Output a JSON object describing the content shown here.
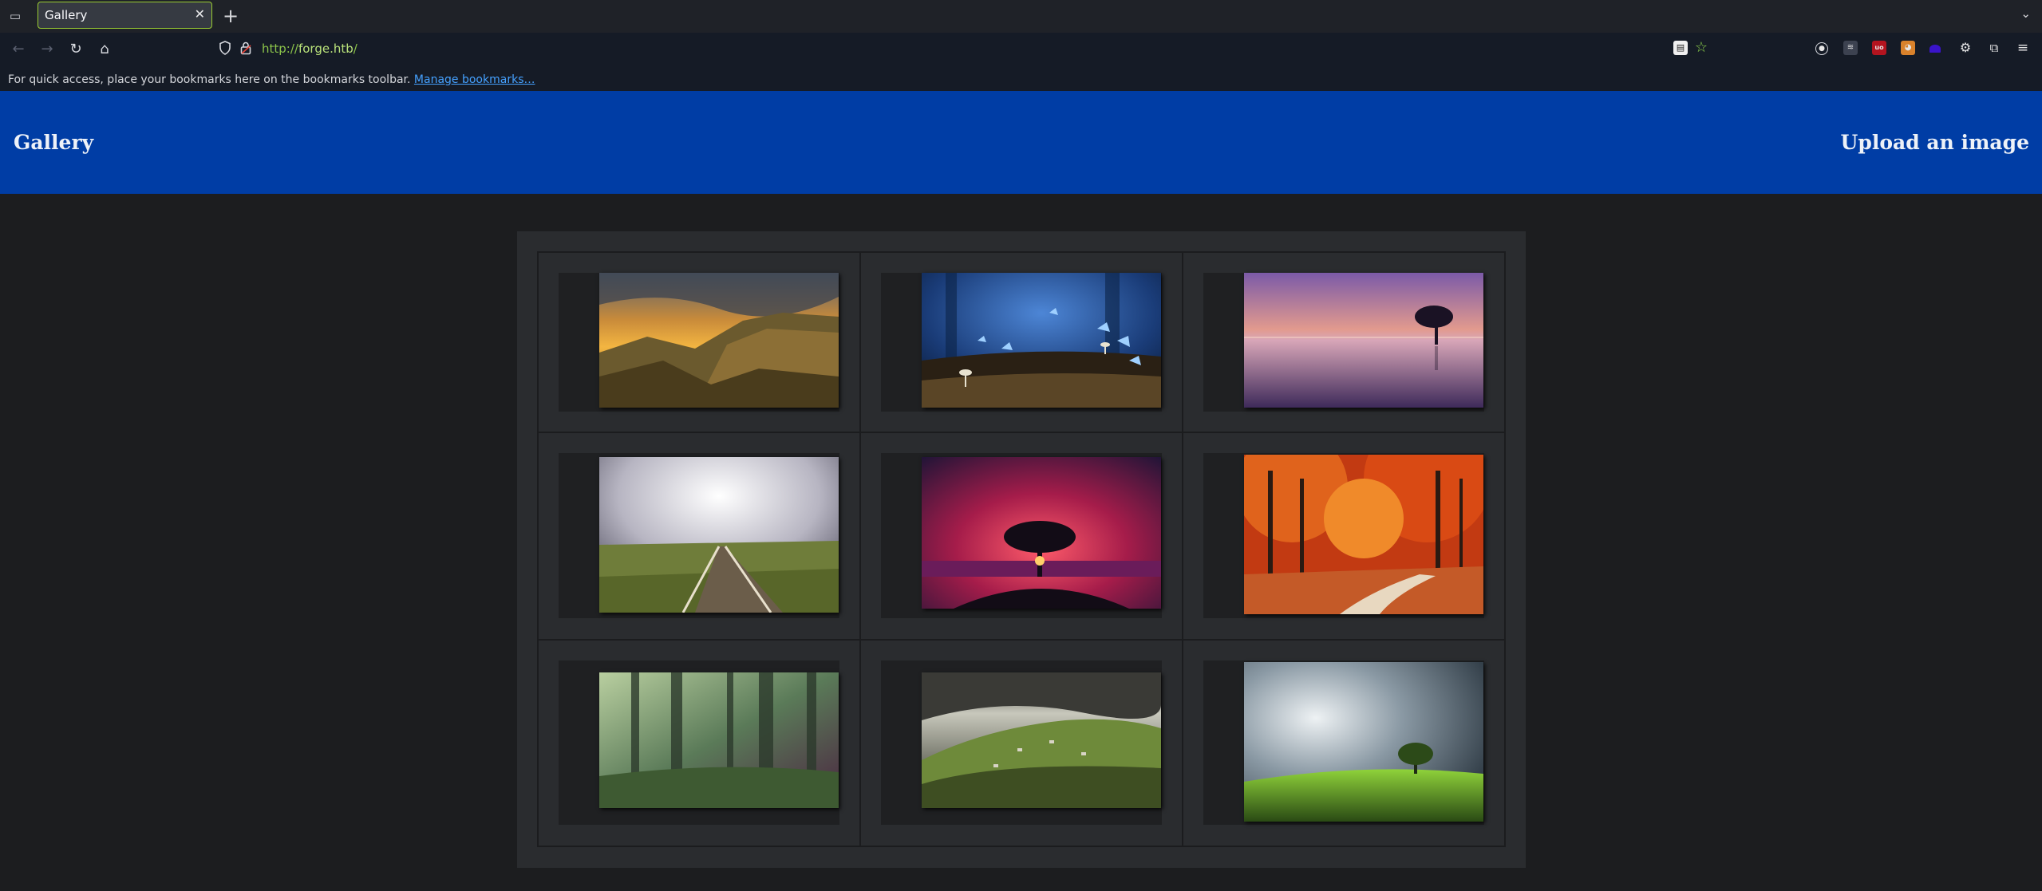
{
  "browser": {
    "tab_title": "Gallery",
    "url_scheme": "http://",
    "url_host": "forge.htb",
    "url_path": "/",
    "bookmarks_hint": "For quick access, place your bookmarks here on the bookmarks toolbar.",
    "bookmarks_link": "Manage bookmarks…",
    "icons": [
      "tab-list-icon",
      "close-icon",
      "plus-icon",
      "chevron-down-icon",
      "back-arrow-icon",
      "forward-arrow-icon",
      "reload-icon",
      "home-icon",
      "shield-icon",
      "lock-icon",
      "reader-view-icon",
      "star-icon",
      "account-icon",
      "extension-icons",
      "puzzle-icon",
      "menu-icon"
    ]
  },
  "site": {
    "title": "Gallery",
    "upload_link": "Upload an image",
    "header_color": "#003da5"
  },
  "gallery": {
    "images": [
      {
        "name": "mountain-sunset-landscape"
      },
      {
        "name": "blue-butterflies-mushrooms"
      },
      {
        "name": "purple-lake-tree-sunset"
      },
      {
        "name": "railroad-tracks-clouds"
      },
      {
        "name": "tree-red-sky-sunset"
      },
      {
        "name": "autumn-forest-path"
      },
      {
        "name": "misty-forest"
      },
      {
        "name": "green-hills-village-clouds"
      },
      {
        "name": "lone-tree-green-field"
      }
    ]
  }
}
